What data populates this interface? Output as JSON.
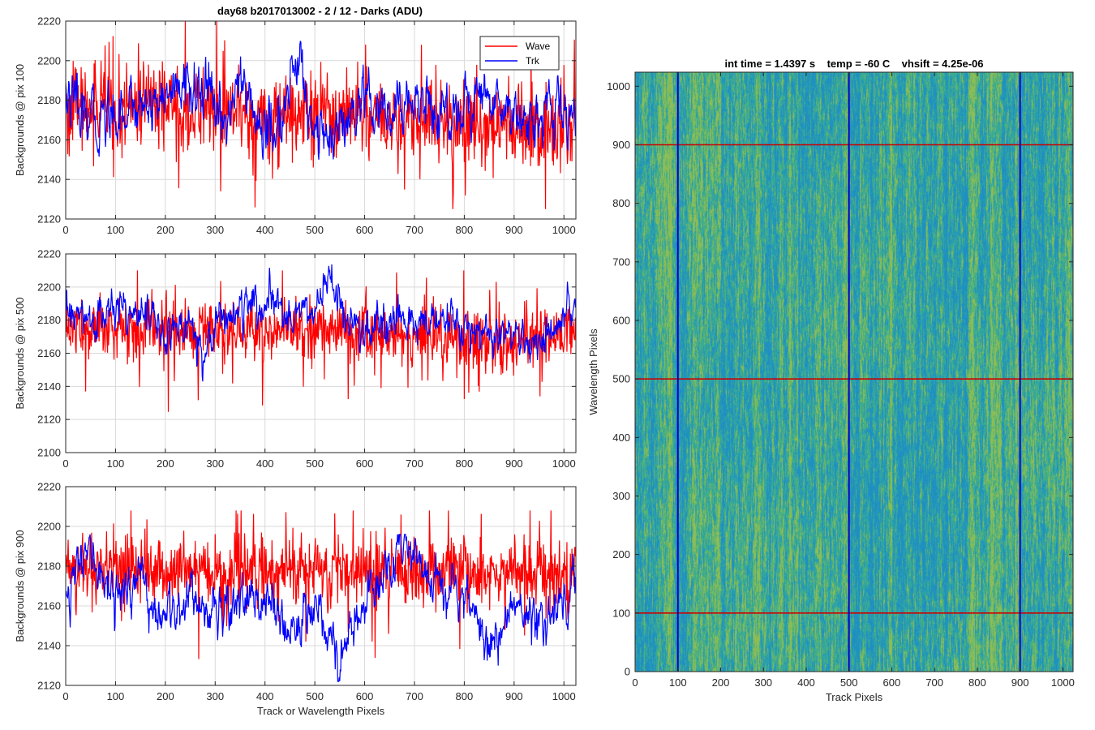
{
  "figure_title": "day68 b2017013002 - 2 / 12 - Darks (ADU)",
  "chart_data": [
    {
      "type": "line",
      "title": "day68 b2017013002 - 2 / 12 - Darks (ADU)",
      "xlabel": "",
      "ylabel": "Backgrounds @ pix 100",
      "xlim": [
        0,
        1024
      ],
      "ylim": [
        2120,
        2220
      ],
      "xticks": [
        0,
        100,
        200,
        300,
        400,
        500,
        600,
        700,
        800,
        900,
        1000
      ],
      "yticks": [
        2120,
        2140,
        2160,
        2180,
        2200,
        2220
      ],
      "grid": true,
      "legend": "top-right",
      "series": [
        {
          "name": "Wave",
          "color": "#ff0000",
          "mean": 2173,
          "noise": 14,
          "min": 2125,
          "max": 2220,
          "x": [
            0,
            100,
            200,
            300,
            400,
            500,
            600,
            700,
            800,
            900,
            1000,
            1023
          ],
          "y": [
            2175,
            2178,
            2176,
            2174,
            2172,
            2172,
            2171,
            2170,
            2168,
            2167,
            2166,
            2168
          ]
        },
        {
          "name": "Trk",
          "color": "#0000ff",
          "mean": 2175,
          "noise": 6,
          "min": 2150,
          "max": 2214,
          "x": [
            0,
            25,
            50,
            100,
            150,
            200,
            260,
            320,
            350,
            400,
            430,
            465,
            500,
            530,
            560,
            600,
            650,
            700,
            760,
            800,
            850,
            900,
            950,
            1000,
            1023
          ],
          "y": [
            2184,
            2172,
            2168,
            2175,
            2178,
            2182,
            2188,
            2170,
            2190,
            2162,
            2168,
            2200,
            2168,
            2158,
            2165,
            2176,
            2170,
            2182,
            2172,
            2178,
            2182,
            2175,
            2170,
            2174,
            2170
          ]
        }
      ]
    },
    {
      "type": "line",
      "title": "",
      "xlabel": "",
      "ylabel": "Backgrounds @ pix 500",
      "xlim": [
        0,
        1024
      ],
      "ylim": [
        2100,
        2220
      ],
      "xticks": [
        0,
        100,
        200,
        300,
        400,
        500,
        600,
        700,
        800,
        900,
        1000
      ],
      "yticks": [
        2100,
        2120,
        2140,
        2160,
        2180,
        2200,
        2220
      ],
      "grid": true,
      "series": [
        {
          "name": "Wave",
          "color": "#ff0000",
          "mean": 2174,
          "noise": 12,
          "min": 2108,
          "max": 2210,
          "x": [
            0,
            100,
            200,
            300,
            400,
            500,
            600,
            700,
            800,
            900,
            1000,
            1023
          ],
          "y": [
            2176,
            2175,
            2174,
            2174,
            2173,
            2173,
            2172,
            2172,
            2170,
            2168,
            2170,
            2172
          ]
        },
        {
          "name": "Trk",
          "color": "#0000ff",
          "mean": 2178,
          "noise": 5,
          "min": 2143,
          "max": 2216,
          "x": [
            0,
            50,
            100,
            150,
            200,
            250,
            280,
            300,
            350,
            400,
            450,
            500,
            530,
            560,
            600,
            650,
            700,
            750,
            800,
            850,
            900,
            950,
            1000,
            1023
          ],
          "y": [
            2184,
            2178,
            2186,
            2190,
            2168,
            2180,
            2160,
            2180,
            2186,
            2188,
            2186,
            2184,
            2210,
            2178,
            2172,
            2175,
            2180,
            2178,
            2175,
            2170,
            2168,
            2165,
            2178,
            2188
          ]
        }
      ]
    },
    {
      "type": "line",
      "title": "",
      "xlabel": "Track or Wavelength Pixels",
      "ylabel": "Backgrounds @ pix 900",
      "xlim": [
        0,
        1024
      ],
      "ylim": [
        2120,
        2220
      ],
      "xticks": [
        0,
        100,
        200,
        300,
        400,
        500,
        600,
        700,
        800,
        900,
        1000
      ],
      "yticks": [
        2120,
        2140,
        2160,
        2180,
        2200,
        2220
      ],
      "grid": true,
      "series": [
        {
          "name": "Wave",
          "color": "#ff0000",
          "mean": 2178,
          "noise": 11,
          "min": 2130,
          "max": 2208,
          "x": [
            0,
            100,
            200,
            300,
            400,
            500,
            600,
            700,
            800,
            900,
            1000,
            1023
          ],
          "y": [
            2178,
            2179,
            2179,
            2178,
            2178,
            2179,
            2178,
            2177,
            2177,
            2176,
            2175,
            2176
          ]
        },
        {
          "name": "Trk",
          "color": "#0000ff",
          "mean": 2170,
          "noise": 5,
          "min": 2122,
          "max": 2196,
          "x": [
            0,
            50,
            100,
            150,
            200,
            250,
            300,
            350,
            400,
            450,
            500,
            550,
            600,
            650,
            670,
            700,
            750,
            800,
            850,
            900,
            950,
            1000,
            1023
          ],
          "y": [
            2170,
            2185,
            2165,
            2172,
            2150,
            2168,
            2156,
            2166,
            2162,
            2145,
            2165,
            2132,
            2162,
            2178,
            2190,
            2182,
            2175,
            2168,
            2138,
            2162,
            2150,
            2164,
            2182
          ]
        }
      ]
    },
    {
      "type": "heatmap",
      "title": "int time = 1.4397 s    temp = -60 C    vhsift = 4.25e-06",
      "xlabel": "Track Pixels",
      "ylabel": "Wavelength Pixels",
      "xlim": [
        0,
        1024
      ],
      "ylim": [
        0,
        1024
      ],
      "xticks": [
        0,
        100,
        200,
        300,
        400,
        500,
        600,
        700,
        800,
        900,
        1000
      ],
      "yticks": [
        0,
        100,
        200,
        300,
        400,
        500,
        600,
        700,
        800,
        900,
        1000
      ],
      "colormap": [
        "#1f8fc2",
        "#2ea5a8",
        "#46b07e",
        "#8fbd55"
      ],
      "vertical_lines": {
        "color": "#0000cc",
        "x": [
          100,
          500,
          900
        ]
      },
      "horizontal_lines": {
        "color": "#cc0000",
        "y": [
          100,
          500,
          900
        ]
      }
    }
  ]
}
